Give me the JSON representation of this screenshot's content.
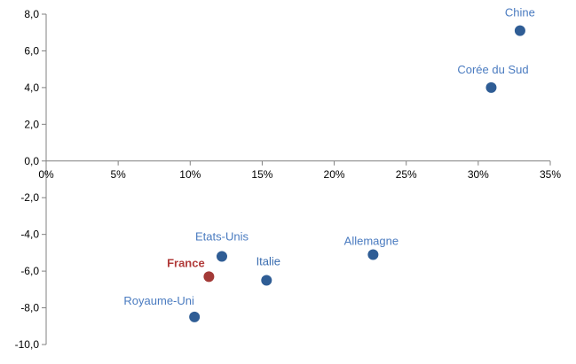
{
  "chart_data": {
    "type": "scatter",
    "title": "",
    "xlabel": "",
    "ylabel": "",
    "xlim": [
      0,
      35
    ],
    "ylim": [
      -10,
      8
    ],
    "x_ticks": [
      0,
      5,
      10,
      15,
      20,
      25,
      30,
      35
    ],
    "x_tick_labels": [
      "0%",
      "5%",
      "10%",
      "15%",
      "20%",
      "25%",
      "30%",
      "35%"
    ],
    "y_ticks": [
      8,
      6,
      4,
      2,
      0,
      -2,
      -4,
      -6,
      -8,
      -10
    ],
    "y_tick_labels": [
      "8,0",
      "6,0",
      "4,0",
      "2,0",
      "0,0",
      "-2,0",
      "-4,0",
      "-6,0",
      "-8,0",
      "-10,0"
    ],
    "grid": false,
    "legend": "none",
    "points": [
      {
        "label": "Chine",
        "x": 32.9,
        "y": 7.1,
        "color": "#2f5d95",
        "label_color": "#4a7bc0",
        "label_bold": false
      },
      {
        "label": "Corée du Sud",
        "x": 30.9,
        "y": 4.0,
        "color": "#2f5d95",
        "label_color": "#4a7bc0",
        "label_bold": false
      },
      {
        "label": "Etats-Unis",
        "x": 12.2,
        "y": -5.2,
        "color": "#2f5d95",
        "label_color": "#4a7bc0",
        "label_bold": false
      },
      {
        "label": "France",
        "x": 11.3,
        "y": -6.3,
        "color": "#a33a37",
        "label_color": "#b13b3a",
        "label_bold": true
      },
      {
        "label": "Italie",
        "x": 15.3,
        "y": -6.5,
        "color": "#2f5d95",
        "label_color": "#3a6db0",
        "label_bold": false
      },
      {
        "label": "Allemagne",
        "x": 22.7,
        "y": -5.1,
        "color": "#2f5d95",
        "label_color": "#4a7bc0",
        "label_bold": false
      },
      {
        "label": "Royaume-Uni",
        "x": 10.3,
        "y": -8.5,
        "color": "#2f5d95",
        "label_color": "#4a7bc0",
        "label_bold": false
      }
    ]
  }
}
